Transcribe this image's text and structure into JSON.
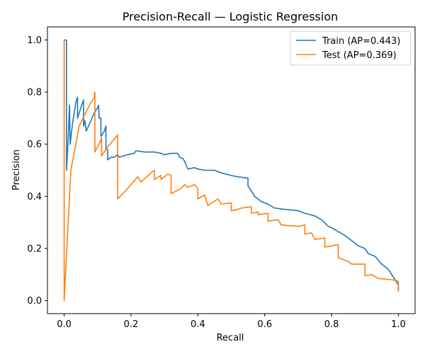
{
  "chart_data": {
    "type": "line",
    "title": "Precision-Recall — Logistic Regression",
    "xlabel": "Recall",
    "ylabel": "Precision",
    "xlim": [
      -0.05,
      1.05
    ],
    "ylim": [
      -0.05,
      1.05
    ],
    "xticks": [
      "0.0",
      "0.2",
      "0.4",
      "0.6",
      "0.8",
      "1.0"
    ],
    "yticks": [
      "0.0",
      "0.2",
      "0.4",
      "0.6",
      "0.8",
      "1.0"
    ],
    "grid": false,
    "legend_position": "top-right",
    "series": [
      {
        "name": "Train (AP=0.443)",
        "color": "#1f77b4",
        "points": [
          [
            0.0,
            1.0
          ],
          [
            0.007,
            1.0
          ],
          [
            0.007,
            0.5
          ],
          [
            0.012,
            0.62
          ],
          [
            0.016,
            0.75
          ],
          [
            0.018,
            0.6
          ],
          [
            0.025,
            0.68
          ],
          [
            0.035,
            0.76
          ],
          [
            0.04,
            0.78
          ],
          [
            0.04,
            0.7
          ],
          [
            0.05,
            0.74
          ],
          [
            0.058,
            0.77
          ],
          [
            0.058,
            0.67
          ],
          [
            0.062,
            0.69
          ],
          [
            0.066,
            0.65
          ],
          [
            0.08,
            0.69
          ],
          [
            0.09,
            0.72
          ],
          [
            0.1,
            0.74
          ],
          [
            0.103,
            0.75
          ],
          [
            0.105,
            0.7
          ],
          [
            0.11,
            0.7
          ],
          [
            0.11,
            0.63
          ],
          [
            0.12,
            0.65
          ],
          [
            0.125,
            0.67
          ],
          [
            0.125,
            0.58
          ],
          [
            0.13,
            0.58
          ],
          [
            0.13,
            0.54
          ],
          [
            0.14,
            0.55
          ],
          [
            0.15,
            0.55
          ],
          [
            0.16,
            0.56
          ],
          [
            0.165,
            0.55
          ],
          [
            0.19,
            0.56
          ],
          [
            0.21,
            0.565
          ],
          [
            0.215,
            0.575
          ],
          [
            0.24,
            0.57
          ],
          [
            0.27,
            0.57
          ],
          [
            0.29,
            0.565
          ],
          [
            0.3,
            0.56
          ],
          [
            0.32,
            0.565
          ],
          [
            0.34,
            0.565
          ],
          [
            0.345,
            0.55
          ],
          [
            0.355,
            0.545
          ],
          [
            0.36,
            0.535
          ],
          [
            0.37,
            0.505
          ],
          [
            0.39,
            0.51
          ],
          [
            0.4,
            0.505
          ],
          [
            0.42,
            0.5
          ],
          [
            0.45,
            0.5
          ],
          [
            0.47,
            0.49
          ],
          [
            0.5,
            0.48
          ],
          [
            0.52,
            0.475
          ],
          [
            0.55,
            0.47
          ],
          [
            0.55,
            0.44
          ],
          [
            0.56,
            0.42
          ],
          [
            0.57,
            0.4
          ],
          [
            0.59,
            0.38
          ],
          [
            0.61,
            0.37
          ],
          [
            0.63,
            0.355
          ],
          [
            0.66,
            0.35
          ],
          [
            0.7,
            0.345
          ],
          [
            0.72,
            0.335
          ],
          [
            0.75,
            0.325
          ],
          [
            0.77,
            0.31
          ],
          [
            0.79,
            0.285
          ],
          [
            0.8,
            0.28
          ],
          [
            0.82,
            0.265
          ],
          [
            0.84,
            0.25
          ],
          [
            0.86,
            0.23
          ],
          [
            0.88,
            0.21
          ],
          [
            0.9,
            0.2
          ],
          [
            0.91,
            0.18
          ],
          [
            0.93,
            0.17
          ],
          [
            0.95,
            0.14
          ],
          [
            0.97,
            0.12
          ],
          [
            0.98,
            0.1
          ],
          [
            0.99,
            0.08
          ],
          [
            1.0,
            0.06
          ],
          [
            1.0,
            0.035
          ]
        ]
      },
      {
        "name": "Test (AP=0.369)",
        "color": "#ff7f0e",
        "points": [
          [
            0.0,
            1.0
          ],
          [
            0.0,
            0.0
          ],
          [
            0.01,
            0.25
          ],
          [
            0.02,
            0.5
          ],
          [
            0.035,
            0.6
          ],
          [
            0.045,
            0.67
          ],
          [
            0.06,
            0.71
          ],
          [
            0.08,
            0.76
          ],
          [
            0.09,
            0.78
          ],
          [
            0.092,
            0.8
          ],
          [
            0.092,
            0.57
          ],
          [
            0.108,
            0.61
          ],
          [
            0.112,
            0.625
          ],
          [
            0.112,
            0.555
          ],
          [
            0.13,
            0.59
          ],
          [
            0.16,
            0.635
          ],
          [
            0.16,
            0.39
          ],
          [
            0.19,
            0.43
          ],
          [
            0.21,
            0.46
          ],
          [
            0.22,
            0.475
          ],
          [
            0.23,
            0.455
          ],
          [
            0.26,
            0.49
          ],
          [
            0.27,
            0.5
          ],
          [
            0.27,
            0.465
          ],
          [
            0.29,
            0.48
          ],
          [
            0.29,
            0.465
          ],
          [
            0.31,
            0.485
          ],
          [
            0.32,
            0.48
          ],
          [
            0.32,
            0.41
          ],
          [
            0.35,
            0.43
          ],
          [
            0.36,
            0.445
          ],
          [
            0.37,
            0.435
          ],
          [
            0.38,
            0.44
          ],
          [
            0.39,
            0.445
          ],
          [
            0.4,
            0.43
          ],
          [
            0.4,
            0.39
          ],
          [
            0.42,
            0.405
          ],
          [
            0.43,
            0.365
          ],
          [
            0.46,
            0.39
          ],
          [
            0.47,
            0.37
          ],
          [
            0.5,
            0.375
          ],
          [
            0.5,
            0.345
          ],
          [
            0.52,
            0.35
          ],
          [
            0.53,
            0.355
          ],
          [
            0.56,
            0.36
          ],
          [
            0.56,
            0.335
          ],
          [
            0.58,
            0.34
          ],
          [
            0.58,
            0.33
          ],
          [
            0.61,
            0.335
          ],
          [
            0.61,
            0.305
          ],
          [
            0.64,
            0.31
          ],
          [
            0.65,
            0.29
          ],
          [
            0.7,
            0.285
          ],
          [
            0.72,
            0.29
          ],
          [
            0.72,
            0.255
          ],
          [
            0.74,
            0.26
          ],
          [
            0.75,
            0.235
          ],
          [
            0.78,
            0.24
          ],
          [
            0.78,
            0.205
          ],
          [
            0.82,
            0.215
          ],
          [
            0.82,
            0.165
          ],
          [
            0.85,
            0.15
          ],
          [
            0.86,
            0.14
          ],
          [
            0.9,
            0.14
          ],
          [
            0.9,
            0.095
          ],
          [
            0.92,
            0.1
          ],
          [
            0.94,
            0.085
          ],
          [
            0.98,
            0.08
          ],
          [
            1.0,
            0.075
          ],
          [
            1.0,
            0.035
          ]
        ]
      }
    ]
  }
}
